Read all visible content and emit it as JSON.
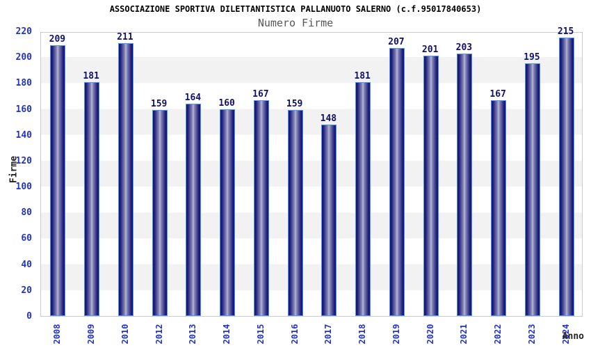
{
  "header": {
    "title": "ASSOCIAZIONE SPORTIVA DILETTANTISTICA PALLANUOTO SALERNO (c.f.95017840653)",
    "subtitle": "Numero Firme"
  },
  "chart_data": {
    "type": "bar",
    "title": "ASSOCIAZIONE SPORTIVA DILETTANTISTICA PALLANUOTO SALERNO (c.f.95017840653)",
    "subtitle": "Numero Firme",
    "xlabel": "Anno",
    "ylabel": "Firme",
    "categories": [
      "2008",
      "2009",
      "2010",
      "2012",
      "2013",
      "2014",
      "2015",
      "2016",
      "2017",
      "2018",
      "2019",
      "2020",
      "2021",
      "2022",
      "2023",
      "2024"
    ],
    "values": [
      209,
      181,
      211,
      159,
      164,
      160,
      167,
      159,
      148,
      181,
      207,
      201,
      203,
      167,
      195,
      215
    ],
    "bar_value_labels": [
      "209",
      "181",
      "211",
      "159",
      "164",
      "160",
      "167",
      "159",
      "148",
      "181",
      "207",
      "201",
      "203",
      "167",
      "195",
      "215"
    ],
    "ylim": [
      0,
      220
    ],
    "yticks": [
      0,
      20,
      40,
      60,
      80,
      100,
      120,
      140,
      160,
      180,
      200,
      220
    ],
    "grid": "alternating-horizontal-bands",
    "legend": "none",
    "bar_labels_shown": true,
    "x_labels_rotated_degrees": 90,
    "colors": {
      "bar_edge": "#4d94ff",
      "bar_gradient_dark": "#14146a",
      "bar_gradient_light": "#b8b8d6",
      "value_label": "#10106a",
      "tick_label": "#2233cc",
      "band_gray": "#f2f2f2",
      "band_white": "#ffffff",
      "plot_border": "#cccccc",
      "title": "#000000",
      "subtitle": "#555555",
      "axis_title": "#222222"
    }
  }
}
